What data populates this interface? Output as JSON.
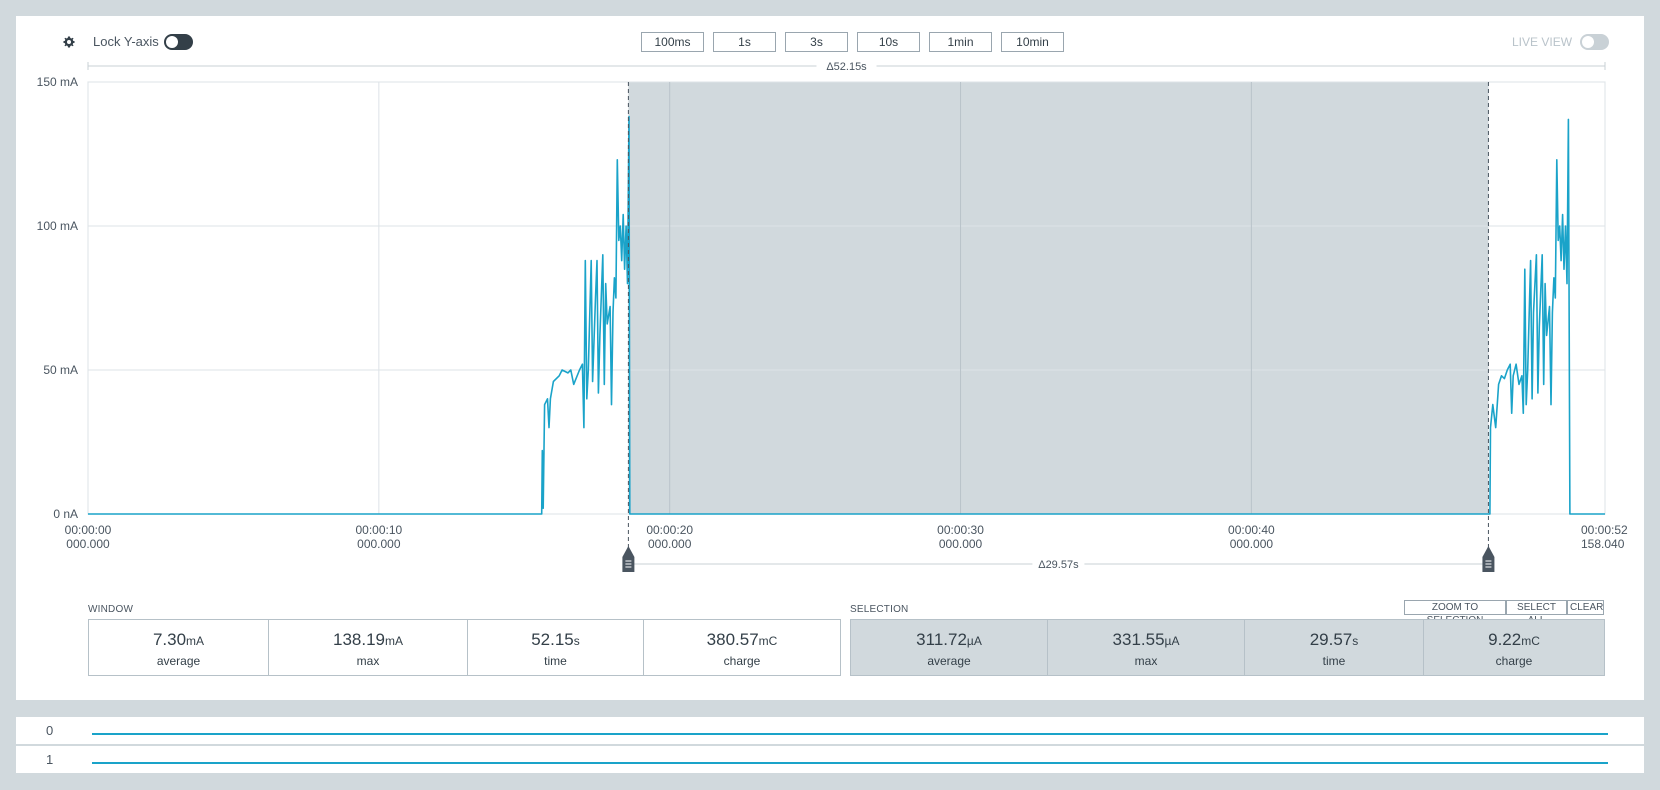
{
  "toolbar": {
    "lock_label": "Lock Y-axis",
    "live_label": "LIVE VIEW",
    "window_buttons": [
      "100ms",
      "1s",
      "3s",
      "10s",
      "1min",
      "10min"
    ]
  },
  "chart_data": {
    "type": "line",
    "y_tick_labels": [
      "150 mA",
      "100 mA",
      "50 mA",
      "0 nA"
    ],
    "y_ticks": [
      150,
      100,
      50,
      0
    ],
    "ylim": [
      0,
      150
    ],
    "xlim": [
      0,
      52.158
    ],
    "x_ticks": [
      {
        "v": 0,
        "l1": "00:00:00",
        "l2": "000.000"
      },
      {
        "v": 10,
        "l1": "00:00:10",
        "l2": "000.000"
      },
      {
        "v": 20,
        "l1": "00:00:20",
        "l2": "000.000"
      },
      {
        "v": 30,
        "l1": "00:00:30",
        "l2": "000.000"
      },
      {
        "v": 40,
        "l1": "00:00:40",
        "l2": "000.000"
      },
      {
        "v": 52.158,
        "l1": "00:00:52",
        "l2": "158.040"
      }
    ],
    "grid": true,
    "window_delta": "Δ52.15s",
    "selection": {
      "start": 18.58,
      "end": 48.15,
      "delta": "Δ29.57s"
    },
    "series": [
      {
        "color": "#1aa3c9",
        "points": [
          [
            0,
            0
          ],
          [
            15.6,
            0
          ],
          [
            15.62,
            22
          ],
          [
            15.65,
            2
          ],
          [
            15.7,
            38
          ],
          [
            15.8,
            40
          ],
          [
            15.85,
            30
          ],
          [
            15.9,
            40
          ],
          [
            16.0,
            46
          ],
          [
            16.2,
            48
          ],
          [
            16.3,
            50
          ],
          [
            16.5,
            49
          ],
          [
            16.6,
            50
          ],
          [
            16.7,
            45
          ],
          [
            16.9,
            50
          ],
          [
            17.0,
            52
          ],
          [
            17.05,
            30
          ],
          [
            17.1,
            88
          ],
          [
            17.15,
            40
          ],
          [
            17.2,
            50
          ],
          [
            17.3,
            88
          ],
          [
            17.35,
            46
          ],
          [
            17.45,
            75
          ],
          [
            17.5,
            88
          ],
          [
            17.55,
            42
          ],
          [
            17.6,
            62
          ],
          [
            17.7,
            90
          ],
          [
            17.75,
            45
          ],
          [
            17.8,
            80
          ],
          [
            17.85,
            66
          ],
          [
            17.95,
            72
          ],
          [
            18.0,
            38
          ],
          [
            18.05,
            70
          ],
          [
            18.1,
            82
          ],
          [
            18.15,
            75
          ],
          [
            18.2,
            123
          ],
          [
            18.25,
            95
          ],
          [
            18.3,
            100
          ],
          [
            18.35,
            88
          ],
          [
            18.4,
            104
          ],
          [
            18.45,
            85
          ],
          [
            18.5,
            100
          ],
          [
            18.55,
            80
          ],
          [
            18.6,
            138
          ],
          [
            18.63,
            0
          ],
          [
            48.2,
            0
          ],
          [
            48.22,
            30
          ],
          [
            48.3,
            38
          ],
          [
            48.4,
            30
          ],
          [
            48.5,
            45
          ],
          [
            48.6,
            48
          ],
          [
            48.7,
            47
          ],
          [
            48.8,
            50
          ],
          [
            48.9,
            52
          ],
          [
            48.95,
            35
          ],
          [
            49.0,
            48
          ],
          [
            49.1,
            52
          ],
          [
            49.2,
            45
          ],
          [
            49.3,
            48
          ],
          [
            49.35,
            35
          ],
          [
            49.4,
            85
          ],
          [
            49.45,
            38
          ],
          [
            49.5,
            50
          ],
          [
            49.6,
            88
          ],
          [
            49.65,
            40
          ],
          [
            49.7,
            70
          ],
          [
            49.8,
            90
          ],
          [
            49.85,
            42
          ],
          [
            49.9,
            65
          ],
          [
            50.0,
            90
          ],
          [
            50.05,
            45
          ],
          [
            50.1,
            80
          ],
          [
            50.15,
            62
          ],
          [
            50.25,
            72
          ],
          [
            50.3,
            38
          ],
          [
            50.35,
            70
          ],
          [
            50.4,
            82
          ],
          [
            50.45,
            75
          ],
          [
            50.5,
            123
          ],
          [
            50.55,
            95
          ],
          [
            50.6,
            100
          ],
          [
            50.65,
            88
          ],
          [
            50.7,
            104
          ],
          [
            50.75,
            85
          ],
          [
            50.8,
            100
          ],
          [
            50.85,
            80
          ],
          [
            50.9,
            137
          ],
          [
            50.95,
            0
          ],
          [
            52.158,
            0
          ]
        ]
      }
    ]
  },
  "window_stats": {
    "title": "WINDOW",
    "items": [
      {
        "value": "7.30",
        "unit": "mA",
        "label": "average"
      },
      {
        "value": "138.19",
        "unit": "mA",
        "label": "max"
      },
      {
        "value": "52.15",
        "unit": "s",
        "label": "time"
      },
      {
        "value": "380.57",
        "unit": "mC",
        "label": "charge"
      }
    ]
  },
  "selection_stats": {
    "title": "SELECTION",
    "items": [
      {
        "value": "311.72",
        "unit": "µA",
        "label": "average"
      },
      {
        "value": "331.55",
        "unit": "µA",
        "label": "max"
      },
      {
        "value": "29.57",
        "unit": "s",
        "label": "time"
      },
      {
        "value": "9.22",
        "unit": "mC",
        "label": "charge"
      }
    ],
    "buttons": [
      "ZOOM TO SELECTION",
      "SELECT ALL",
      "CLEAR"
    ]
  },
  "digital_channels": [
    "0",
    "1"
  ]
}
